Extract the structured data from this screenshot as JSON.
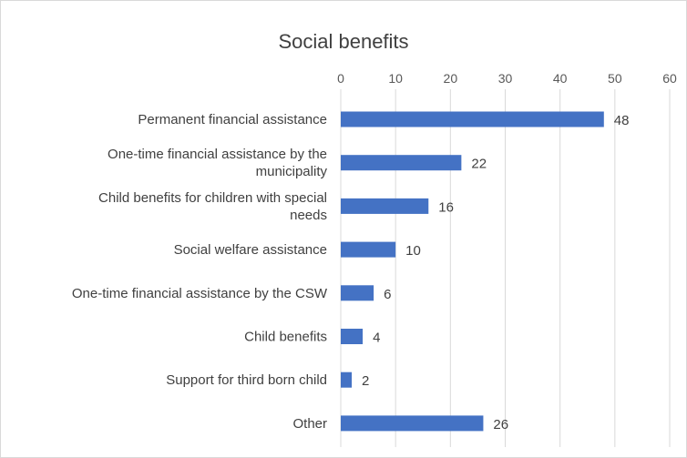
{
  "chart_data": {
    "type": "bar",
    "orientation": "horizontal",
    "title": "Social benefits",
    "categories": [
      [
        "Permanent financial assistance"
      ],
      [
        "One-time financial assistance by the",
        "municipality"
      ],
      [
        "Child benefits for children with special",
        "needs"
      ],
      [
        "Social welfare assistance"
      ],
      [
        "One-time financial assistance by the CSW"
      ],
      [
        "Child benefits"
      ],
      [
        "Support for third born child"
      ],
      [
        "Other"
      ]
    ],
    "values": [
      48,
      22,
      16,
      10,
      6,
      4,
      2,
      26
    ],
    "xlim": [
      0,
      60
    ],
    "xticks": [
      0,
      10,
      20,
      30,
      40,
      50,
      60
    ],
    "axis_position": "top",
    "grid": "vertical",
    "data_labels": true,
    "bar_color": "#4472c4",
    "grid_color": "#d9d9d9"
  }
}
